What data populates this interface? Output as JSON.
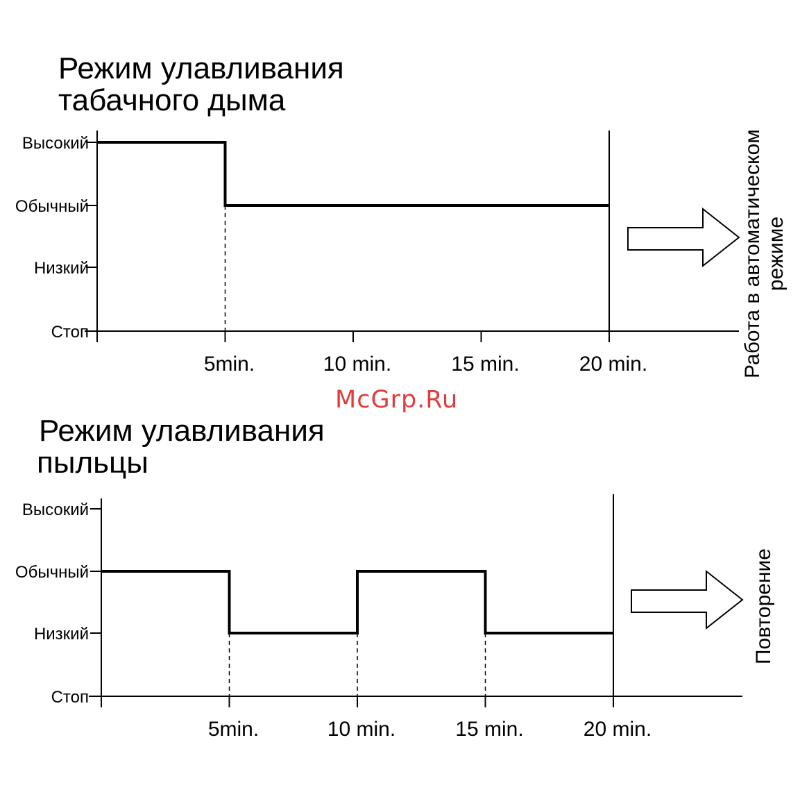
{
  "watermark": "McGrp.Ru",
  "chart_data": [
    {
      "type": "line",
      "step": true,
      "title_lines": [
        "Режим улавливания",
        "табачного дыма"
      ],
      "y_categories": [
        "Стоп",
        "Низкий",
        "Обычный",
        "Высокий"
      ],
      "x_ticks": [
        0,
        5,
        10,
        15,
        20
      ],
      "x_tick_labels": [
        "5min.",
        "10 min.",
        "15 min.",
        "20 min."
      ],
      "xlim": [
        0,
        24
      ],
      "series": [
        {
          "points": [
            [
              0,
              "Высокий"
            ],
            [
              5,
              "Высокий"
            ],
            [
              5,
              "Обычный"
            ],
            [
              20,
              "Обычный"
            ]
          ]
        }
      ],
      "side_label_lines": [
        "Работа в автоматическом",
        "режиме"
      ]
    },
    {
      "type": "line",
      "step": true,
      "title_lines": [
        "Режим улавливания",
        "пыльцы"
      ],
      "y_categories": [
        "Стоп",
        "Низкий",
        "Обычный",
        "Высокий"
      ],
      "x_ticks": [
        0,
        5,
        10,
        15,
        20
      ],
      "x_tick_labels": [
        "5min.",
        "10 min.",
        "15 min.",
        "20 min."
      ],
      "xlim": [
        0,
        25
      ],
      "series": [
        {
          "points": [
            [
              0,
              "Обычный"
            ],
            [
              5,
              "Обычный"
            ],
            [
              5,
              "Низкий"
            ],
            [
              10,
              "Низкий"
            ],
            [
              10,
              "Обычный"
            ],
            [
              15,
              "Обычный"
            ],
            [
              15,
              "Низкий"
            ],
            [
              20,
              "Низкий"
            ]
          ]
        }
      ],
      "side_label_lines": [
        "Повторение"
      ]
    }
  ]
}
